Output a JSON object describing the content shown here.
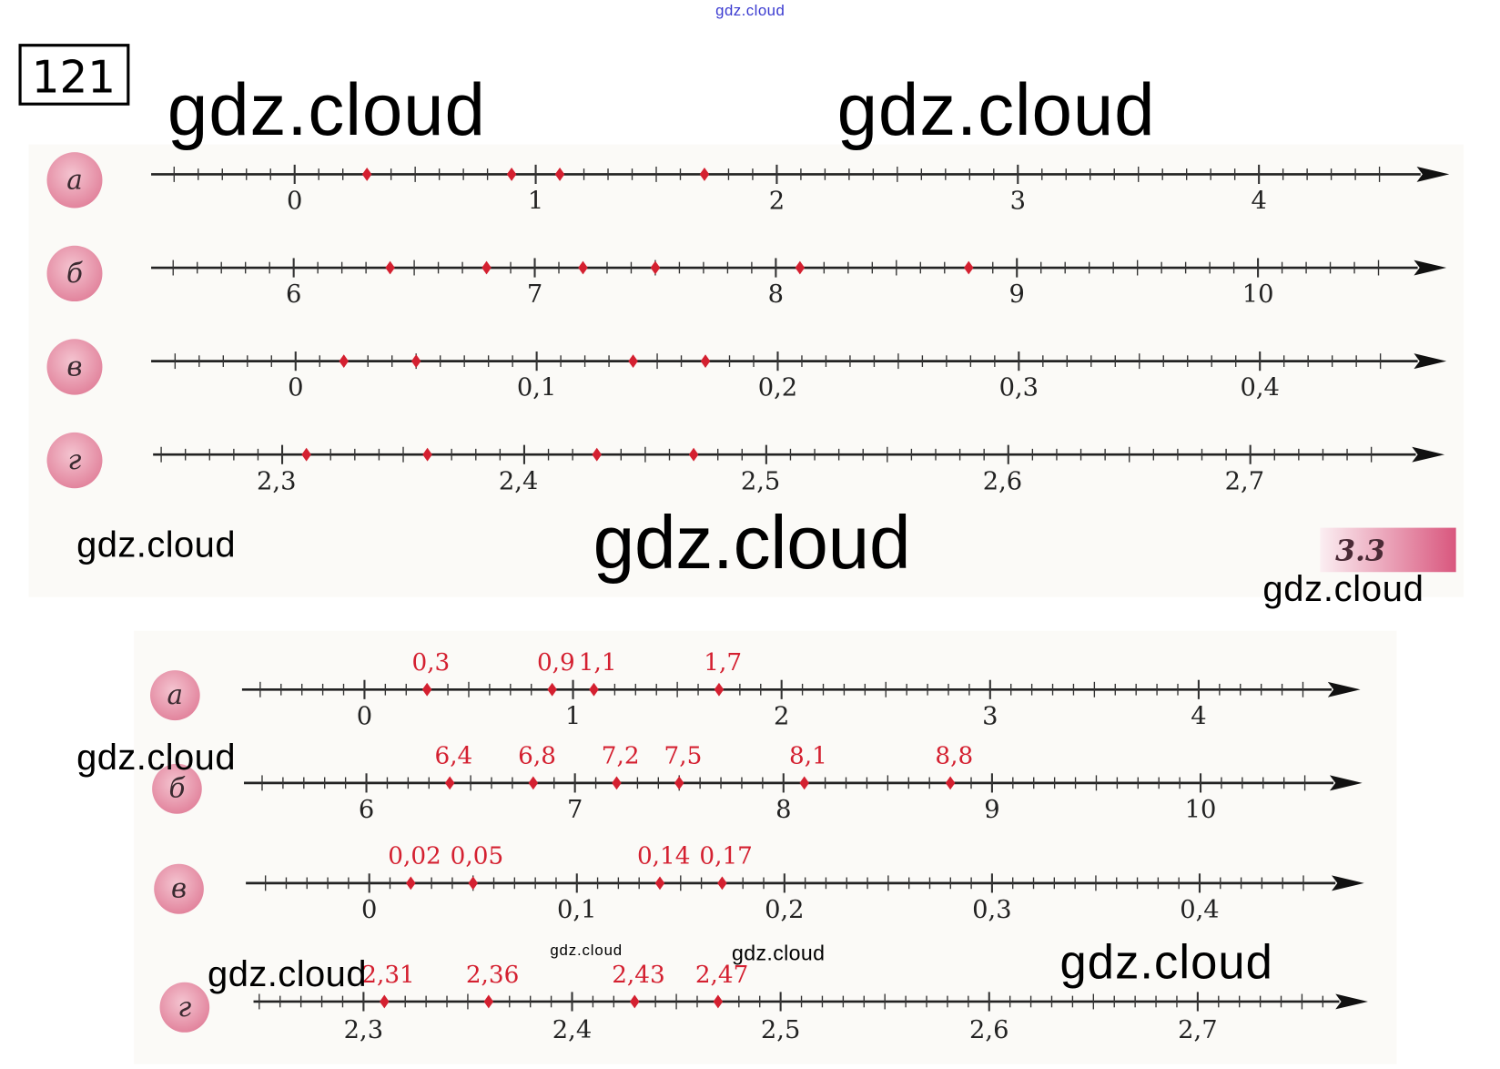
{
  "watermarks": {
    "top_small": "gdz.cloud",
    "big_1": "gdz.cloud",
    "big_2": "gdz.cloud",
    "mid_left": "gdz.cloud",
    "mid_center": "gdz.cloud",
    "mid_right": "gdz.cloud",
    "left_lower": "gdz.cloud",
    "bottom_left": "gdz.cloud",
    "bottom_tiny": "gdz.cloud",
    "bottom_small": "gdz.cloud",
    "bottom_right": "gdz.cloud"
  },
  "exercise_number": "121",
  "section_badge": "3.3",
  "colors": {
    "point": "#d42030",
    "badge": "#d9577e",
    "circle": "#e891a8",
    "watermark_top": "#3a3ad0"
  },
  "problem": {
    "lines": [
      {
        "letter": "а",
        "major_values": [
          0,
          1,
          2,
          3,
          4
        ],
        "tick_labels": [
          "0",
          "1",
          "2",
          "3",
          "4"
        ],
        "minor_step": 0.1,
        "points": [
          0.3,
          0.9,
          1.1,
          1.7
        ]
      },
      {
        "letter": "б",
        "major_values": [
          6,
          7,
          8,
          9,
          10
        ],
        "tick_labels": [
          "6",
          "7",
          "8",
          "9",
          "10"
        ],
        "minor_step": 0.1,
        "points": [
          6.4,
          6.8,
          7.2,
          7.5,
          8.1,
          8.8
        ]
      },
      {
        "letter": "в",
        "major_values": [
          0,
          0.1,
          0.2,
          0.3,
          0.4
        ],
        "tick_labels": [
          "0",
          "0,1",
          "0,2",
          "0,3",
          "0,4"
        ],
        "minor_step": 0.01,
        "points": [
          0.02,
          0.05,
          0.14,
          0.17
        ]
      },
      {
        "letter": "г",
        "major_values": [
          2.3,
          2.4,
          2.5,
          2.6,
          2.7
        ],
        "tick_labels": [
          "2,3",
          "2,4",
          "2,5",
          "2,6",
          "2,7"
        ],
        "minor_step": 0.01,
        "points": [
          2.31,
          2.36,
          2.43,
          2.47
        ]
      }
    ]
  },
  "answer": {
    "lines": [
      {
        "letter": "а",
        "major_values": [
          0,
          1,
          2,
          3,
          4
        ],
        "tick_labels": [
          "0",
          "1",
          "2",
          "3",
          "4"
        ],
        "minor_step": 0.1,
        "points": [
          0.3,
          0.9,
          1.1,
          1.7
        ],
        "point_labels": [
          "0,3",
          "0,9",
          "1,1",
          "1,7"
        ]
      },
      {
        "letter": "б",
        "major_values": [
          6,
          7,
          8,
          9,
          10
        ],
        "tick_labels": [
          "6",
          "7",
          "8",
          "9",
          "10"
        ],
        "minor_step": 0.1,
        "points": [
          6.4,
          6.8,
          7.2,
          7.5,
          8.1,
          8.8
        ],
        "point_labels": [
          "6,4",
          "6,8",
          "7,2",
          "7,5",
          "8,1",
          "8,8"
        ]
      },
      {
        "letter": "в",
        "major_values": [
          0,
          0.1,
          0.2,
          0.3,
          0.4
        ],
        "tick_labels": [
          "0",
          "0,1",
          "0,2",
          "0,3",
          "0,4"
        ],
        "minor_step": 0.01,
        "points": [
          0.02,
          0.05,
          0.14,
          0.17
        ],
        "point_labels": [
          "0,02",
          "0,05",
          "0,14",
          "0,17"
        ]
      },
      {
        "letter": "г",
        "major_values": [
          2.3,
          2.4,
          2.5,
          2.6,
          2.7
        ],
        "tick_labels": [
          "2,3",
          "2,4",
          "2,5",
          "2,6",
          "2,7"
        ],
        "minor_step": 0.01,
        "points": [
          2.31,
          2.36,
          2.43,
          2.47
        ],
        "point_labels": [
          "2,31",
          "2,36",
          "2,43",
          "2,47"
        ]
      }
    ]
  }
}
